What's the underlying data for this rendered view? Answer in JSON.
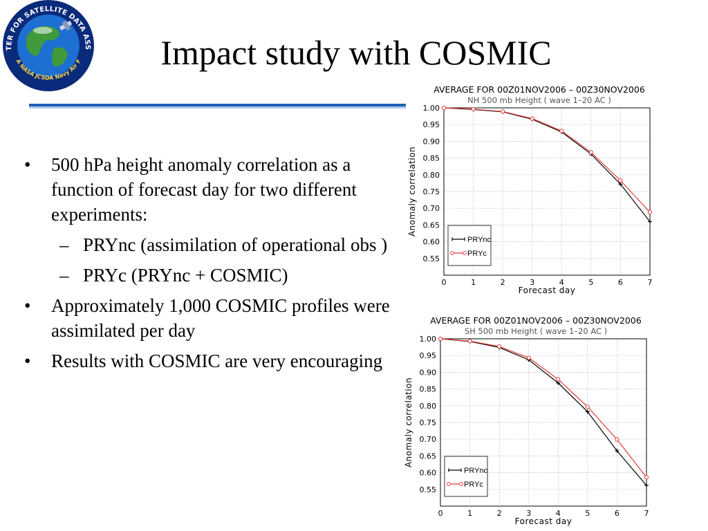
{
  "slide": {
    "title": "Impact study with COSMIC",
    "logo": {
      "ring_text": "JOINT CENTER FOR SATELLITE DATA ASSIMILATION",
      "bottom_text": "NOAA  NASA  JCSDA  Navy  Air Force",
      "colors": {
        "ring": "#0a2a7a",
        "ocean": "#1d6fd1",
        "land": "#3f9a3a"
      }
    },
    "accent_color": "#1f5fb4"
  },
  "bullets": [
    {
      "level": 1,
      "text": "500 hPa height anomaly correlation as a function of forecast day for two different experiments:"
    },
    {
      "level": 2,
      "text": "PRYnc (assimilation of operational obs )"
    },
    {
      "level": 2,
      "text": "PRYc (PRYnc + COSMIC)"
    },
    {
      "level": 1,
      "text": "Approximately 1,000 COSMIC profiles were assimilated per day"
    },
    {
      "level": 1,
      "text": "Results with COSMIC are very encouraging"
    }
  ],
  "chart_data": [
    {
      "type": "line",
      "title": "AVERAGE FOR 00Z01NOV2006 – 00Z30NOV2006",
      "subtitle": "NH 500 mb Height ( wave 1–20 AC )",
      "xlabel": "Forecast day",
      "ylabel": "Anomaly correlation",
      "xlim": [
        0,
        7
      ],
      "ylim": [
        0.5,
        1.0
      ],
      "xticks": [
        "0",
        "1",
        "2",
        "3",
        "4",
        "5",
        "6",
        "7"
      ],
      "yticks": [
        "0.55",
        "0.60",
        "0.65",
        "0.70",
        "0.75",
        "0.80",
        "0.85",
        "0.90",
        "0.95",
        "1.00"
      ],
      "grid": true,
      "legend": "bottom-left",
      "x": [
        0,
        1,
        2,
        3,
        4,
        5,
        6,
        7
      ],
      "series": [
        {
          "name": "PRYnc",
          "color": "#000000",
          "marker": "plus",
          "values": [
            1.0,
            0.995,
            0.988,
            0.966,
            0.928,
            0.862,
            0.772,
            0.66
          ]
        },
        {
          "name": "PRYc",
          "color": "#e23a3a",
          "marker": "circle",
          "values": [
            1.0,
            0.996,
            0.989,
            0.968,
            0.931,
            0.867,
            0.783,
            0.688
          ]
        }
      ]
    },
    {
      "type": "line",
      "title": "AVERAGE FOR 00Z01NOV2006 – 00Z30NOV2006",
      "subtitle": "SH 500 mb Height ( wave 1–20 AC )",
      "xlabel": "Forecast day",
      "ylabel": "Anomaly correlation",
      "xlim": [
        0,
        7
      ],
      "ylim": [
        0.5,
        1.0
      ],
      "xticks": [
        "0",
        "1",
        "2",
        "3",
        "4",
        "5",
        "6",
        "7"
      ],
      "yticks": [
        "0.55",
        "0.60",
        "0.65",
        "0.70",
        "0.75",
        "0.80",
        "0.85",
        "0.90",
        "0.95",
        "1.00"
      ],
      "grid": true,
      "legend": "bottom-left",
      "x": [
        0,
        1,
        2,
        3,
        4,
        5,
        6,
        7
      ],
      "series": [
        {
          "name": "PRYnc",
          "color": "#000000",
          "marker": "plus",
          "values": [
            1.0,
            0.992,
            0.974,
            0.937,
            0.868,
            0.782,
            0.665,
            0.562
          ]
        },
        {
          "name": "PRYc",
          "color": "#e23a3a",
          "marker": "circle",
          "values": [
            1.0,
            0.993,
            0.977,
            0.943,
            0.879,
            0.797,
            0.699,
            0.586
          ]
        }
      ]
    }
  ]
}
